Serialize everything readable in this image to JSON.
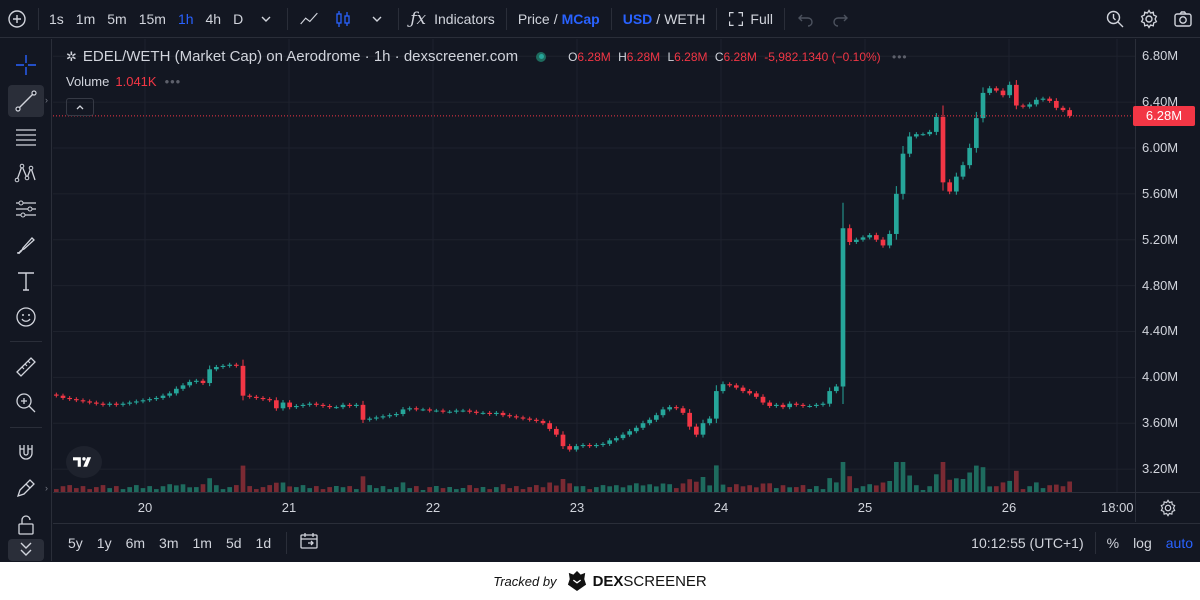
{
  "toolbar": {
    "intervals": [
      "1s",
      "1m",
      "5m",
      "15m",
      "1h",
      "4h",
      "D"
    ],
    "active_interval": "1h",
    "indicators_label": "Indicators",
    "price_label": "Price",
    "mcap_label": "MCap",
    "usd_label": "USD",
    "weth_label": "WETH",
    "full_label": "Full",
    "slash": "/"
  },
  "legend": {
    "symbol": "EDEL/WETH (Market Cap) on Aerodrome · 1h · dexscreener.com",
    "o_key": "O",
    "o_val": "6.28M",
    "h_key": "H",
    "h_val": "6.28M",
    "l_key": "L",
    "l_val": "6.28M",
    "c_key": "C",
    "c_val": "6.28M",
    "change": "-5,982.1340 (−0.10%)",
    "volume_label": "Volume",
    "volume_value": "1.041K"
  },
  "price_axis": {
    "ticks": [
      "6.80M",
      "6.40M",
      "6.00M",
      "5.60M",
      "5.20M",
      "4.80M",
      "4.40M",
      "4.00M",
      "3.60M",
      "3.20M"
    ],
    "current_label": "6.28M"
  },
  "time_axis": {
    "ticks": [
      "20",
      "21",
      "22",
      "23",
      "24",
      "25",
      "26",
      "18:00"
    ]
  },
  "rangebar": {
    "ranges": [
      "5y",
      "1y",
      "6m",
      "3m",
      "1m",
      "5d",
      "1d"
    ],
    "clock": "10:12:55 (UTC+1)",
    "percent": "%",
    "log": "log",
    "auto": "auto"
  },
  "footer": {
    "tracked_by": "Tracked by",
    "brand_dex": "DEX",
    "brand_screener": "SCREENER"
  },
  "colors": {
    "up": "#26a69a",
    "down": "#f23645",
    "accent": "#2962ff",
    "background": "#131722"
  },
  "chart_data": {
    "type": "candlestick",
    "title": "EDEL/WETH (Market Cap) on Aerodrome · 1h · dexscreener.com",
    "ylim": [
      3.0,
      6.95
    ],
    "yunit": "M",
    "current": 6.28,
    "x_ticks": [
      "20",
      "21",
      "22",
      "23",
      "24",
      "25",
      "26",
      "18:00"
    ],
    "closes": [
      3.84,
      3.82,
      3.81,
      3.8,
      3.79,
      3.78,
      3.77,
      3.76,
      3.77,
      3.76,
      3.77,
      3.78,
      3.79,
      3.8,
      3.81,
      3.82,
      3.84,
      3.86,
      3.9,
      3.93,
      3.96,
      3.97,
      3.95,
      4.07,
      4.09,
      4.1,
      4.11,
      4.1,
      3.84,
      3.83,
      3.82,
      3.81,
      3.8,
      3.73,
      3.78,
      3.74,
      3.75,
      3.76,
      3.77,
      3.76,
      3.75,
      3.74,
      3.74,
      3.76,
      3.75,
      3.76,
      3.63,
      3.64,
      3.65,
      3.66,
      3.67,
      3.68,
      3.72,
      3.73,
      3.72,
      3.72,
      3.71,
      3.71,
      3.7,
      3.7,
      3.71,
      3.71,
      3.7,
      3.69,
      3.69,
      3.68,
      3.69,
      3.67,
      3.66,
      3.65,
      3.64,
      3.63,
      3.62,
      3.6,
      3.55,
      3.5,
      3.4,
      3.37,
      3.4,
      3.41,
      3.4,
      3.41,
      3.42,
      3.45,
      3.47,
      3.5,
      3.53,
      3.56,
      3.6,
      3.63,
      3.67,
      3.72,
      3.74,
      3.73,
      3.69,
      3.57,
      3.5,
      3.6,
      3.64,
      3.88,
      3.94,
      3.93,
      3.91,
      3.88,
      3.86,
      3.83,
      3.78,
      3.75,
      3.76,
      3.74,
      3.77,
      3.76,
      3.75,
      3.75,
      3.76,
      3.77,
      3.88,
      3.92,
      5.3,
      5.18,
      5.2,
      5.22,
      5.24,
      5.2,
      5.15,
      5.25,
      5.6,
      5.95,
      6.1,
      6.12,
      6.12,
      6.14,
      6.27,
      5.7,
      5.62,
      5.75,
      5.85,
      6.0,
      6.26,
      6.48,
      6.52,
      6.5,
      6.46,
      6.55,
      6.37,
      6.36,
      6.38,
      6.42,
      6.43,
      6.41,
      6.35,
      6.33,
      6.28
    ]
  }
}
